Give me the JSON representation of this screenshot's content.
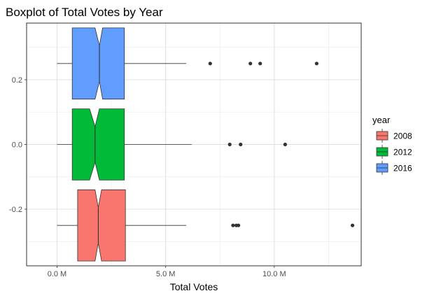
{
  "chart_data": {
    "type": "boxplot",
    "title": "Boxplot of Total Votes by Year",
    "xlabel": "Total Votes",
    "ylabel": "",
    "xlim": [
      -1.4,
      14.0
    ],
    "ylim": [
      -0.375,
      0.375
    ],
    "x_unit": "M",
    "x_ticks": [
      {
        "value": 0,
        "label": "0.0 M"
      },
      {
        "value": 5,
        "label": "5.0 M"
      },
      {
        "value": 10,
        "label": "10.0 M"
      }
    ],
    "y_ticks": [
      {
        "value": -0.2,
        "label": "-0.2"
      },
      {
        "value": 0.0,
        "label": "0.0"
      },
      {
        "value": 0.2,
        "label": "0.2"
      }
    ],
    "grid": true,
    "notched": true,
    "orientation": "horizontal",
    "legend": {
      "title": "year",
      "position": "right",
      "entries": [
        {
          "label": "2008",
          "color": "#F8766D"
        },
        {
          "label": "2012",
          "color": "#00BA38"
        },
        {
          "label": "2016",
          "color": "#619CFF"
        }
      ]
    },
    "series": [
      {
        "name": "2008",
        "color": "#F8766D",
        "y_center": -0.25,
        "y_range": [
          -0.36,
          -0.14
        ],
        "whisker_low": 0.0,
        "q1": 0.95,
        "notch_low": 1.75,
        "median": 1.9,
        "notch_high": 2.05,
        "q3": 3.15,
        "whisker_high": 5.95,
        "outliers": [
          8.1,
          8.25,
          8.35,
          13.6
        ]
      },
      {
        "name": "2012",
        "color": "#00BA38",
        "y_center": 0.0,
        "y_range": [
          -0.11,
          0.11
        ],
        "whisker_low": 0.0,
        "q1": 0.7,
        "notch_low": 1.5,
        "median": 1.75,
        "notch_high": 1.95,
        "q3": 3.1,
        "whisker_high": 6.2,
        "outliers": [
          7.95,
          8.45,
          10.5
        ]
      },
      {
        "name": "2016",
        "color": "#619CFF",
        "y_center": 0.25,
        "y_range": [
          0.14,
          0.36
        ],
        "whisker_low": 0.0,
        "q1": 0.7,
        "notch_low": 1.75,
        "median": 1.95,
        "notch_high": 2.1,
        "q3": 3.1,
        "whisker_high": 5.95,
        "outliers": [
          7.05,
          8.9,
          9.35,
          11.95
        ]
      }
    ]
  }
}
